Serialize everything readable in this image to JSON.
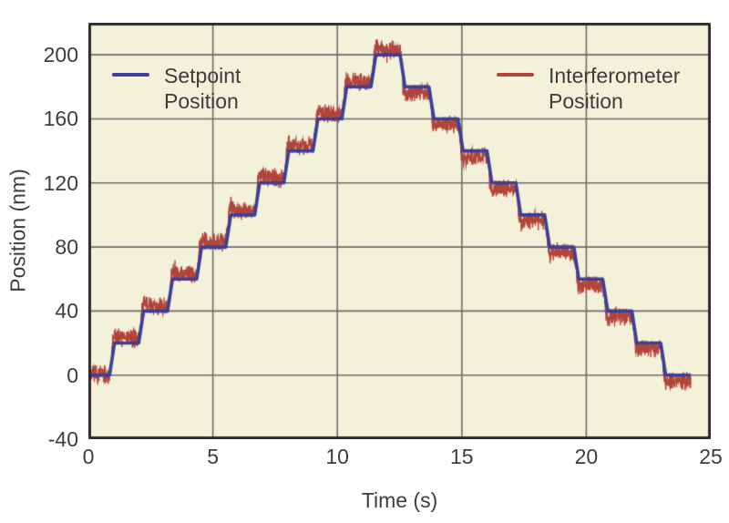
{
  "page": {
    "background_color": "#ffffff"
  },
  "chart_data": {
    "type": "line",
    "title": "",
    "xlabel": "Time (s)",
    "ylabel": "Position (nm)",
    "xlim": [
      0,
      25
    ],
    "ylim": [
      -40,
      220
    ],
    "x_ticks": [
      0,
      5,
      10,
      15,
      20,
      25
    ],
    "y_ticks": [
      -40,
      0,
      40,
      80,
      120,
      160,
      200
    ],
    "grid": true,
    "legend_position": "top-inside",
    "plot_bg_color": "#f4f1da",
    "grid_color": "#6e6e6e",
    "frame_color": "#2d2d2d",
    "tick_text_color": "#3d3d3d",
    "step_height_nm": 20,
    "step_ramp_s": 0.2,
    "series": [
      {
        "name": "Setpoint Position",
        "color": "#3b3f97",
        "style": "step",
        "line_width": 3.6
      },
      {
        "name": "Interferometer Position",
        "color": "#b2443a",
        "style": "noisy-step",
        "line_width": 1.3,
        "noise_half_width_nm": 6.5,
        "noise_bias_nm": 3.2,
        "transition_overshoot_nm": 5
      }
    ],
    "steps": [
      [
        0.0,
        0.95,
        0
      ],
      [
        0.95,
        2.12,
        20
      ],
      [
        2.12,
        3.28,
        40
      ],
      [
        3.28,
        4.45,
        60
      ],
      [
        4.45,
        5.62,
        80
      ],
      [
        5.62,
        6.78,
        100
      ],
      [
        6.78,
        7.95,
        120
      ],
      [
        7.95,
        9.12,
        140
      ],
      [
        9.12,
        10.28,
        160
      ],
      [
        10.28,
        11.45,
        180
      ],
      [
        11.45,
        12.62,
        200
      ],
      [
        12.62,
        13.78,
        180
      ],
      [
        13.78,
        14.95,
        160
      ],
      [
        14.95,
        16.11,
        140
      ],
      [
        16.11,
        17.27,
        120
      ],
      [
        17.27,
        18.43,
        100
      ],
      [
        18.43,
        19.6,
        80
      ],
      [
        19.6,
        20.76,
        60
      ],
      [
        20.76,
        21.93,
        40
      ],
      [
        21.93,
        23.09,
        20
      ],
      [
        23.09,
        24.2,
        0
      ]
    ]
  }
}
